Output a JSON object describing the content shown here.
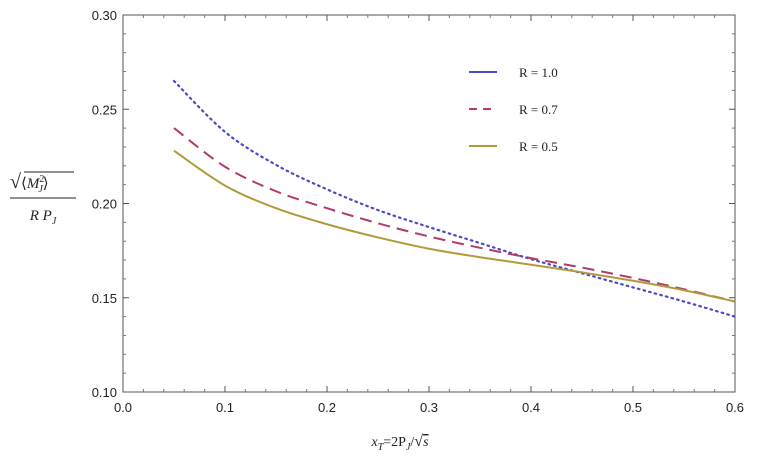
{
  "chart_data": {
    "type": "line",
    "xlim": [
      0.0,
      0.6
    ],
    "ylim": [
      0.1,
      0.3
    ],
    "x_ticks": [
      "0.0",
      "0.1",
      "0.2",
      "0.3",
      "0.4",
      "0.5",
      "0.6"
    ],
    "y_ticks": [
      "0.10",
      "0.15",
      "0.20",
      "0.25",
      "0.30"
    ],
    "x_tick_values": [
      0.0,
      0.1,
      0.2,
      0.3,
      0.4,
      0.5,
      0.6
    ],
    "y_tick_values": [
      0.1,
      0.15,
      0.2,
      0.25,
      0.3
    ],
    "xlabel": {
      "main": "x",
      "sub": "T",
      "rest": "=2P",
      "sub2": "J",
      "slash": "/",
      "sqrt_sym": "√",
      "arg": "s"
    },
    "ylabel": {
      "sqrt_sym": "√",
      "angle_open": "⟨",
      "m": "M",
      "sup": "2",
      "sub": "J",
      "angle_close": "⟩",
      "denominator": "R P",
      "den_sub": "J"
    },
    "legend_position": "top-right",
    "grid": false,
    "x": [
      0.05,
      0.1,
      0.15,
      0.2,
      0.25,
      0.3,
      0.35,
      0.4,
      0.45,
      0.5,
      0.55,
      0.6
    ],
    "series": [
      {
        "name": "R = 1.0",
        "color": "#4b4bc8",
        "dash": "dotted",
        "values": [
          0.265,
          0.238,
          0.2205,
          0.2075,
          0.1965,
          0.1875,
          0.179,
          0.1705,
          0.163,
          0.1555,
          0.148,
          0.14
        ]
      },
      {
        "name": "R = 0.7",
        "color": "#b03a6e",
        "dash": "dashed",
        "values": [
          0.24,
          0.2195,
          0.2065,
          0.1975,
          0.1895,
          0.1825,
          0.1765,
          0.171,
          0.166,
          0.1605,
          0.1545,
          0.148
        ]
      },
      {
        "name": "R = 0.5",
        "color": "#b09a3c",
        "dash": "solid",
        "values": [
          0.228,
          0.2095,
          0.1975,
          0.189,
          0.182,
          0.176,
          0.1715,
          0.1675,
          0.1635,
          0.159,
          0.154,
          0.148
        ]
      }
    ]
  }
}
